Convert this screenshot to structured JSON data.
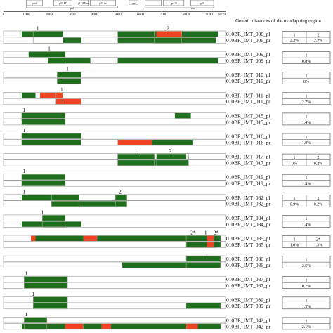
{
  "genome_map": {
    "labels": {
      "prot": "prot",
      "pol": "pol",
      "rt": "p51 RT",
      "rnase": "p15 RNase",
      "int": "p31 int",
      "vpr": "vpr",
      "env": "env",
      "gp120": "gp120",
      "gp41": "gp41"
    },
    "axis": {
      "min": 0,
      "max": 9719,
      "ticks": [
        0,
        1000,
        2000,
        3000,
        4000,
        5000,
        6000,
        7000,
        8000,
        9000,
        9719
      ]
    }
  },
  "header": {
    "title": "Genetic distances  of  the overlapping region"
  },
  "colors": {
    "green": "#1e6e1e",
    "red": "#ee4422",
    "track": "#ffffff",
    "border": "#888888"
  },
  "pairs": [
    {
      "markers": [
        {
          "label": "1",
          "pos": 1500
        },
        {
          "label": "2",
          "pos": 7200
        }
      ],
      "overlaps": [
        [
          1300,
          2600
        ],
        [
          6600,
          7800
        ]
      ],
      "pl": {
        "name": "010BR_IMT_006_pl",
        "segments": [
          [
            800,
            2600,
            "g"
          ],
          [
            5000,
            6700,
            "g"
          ],
          [
            6700,
            7800,
            "r"
          ],
          [
            7800,
            9400,
            "g"
          ]
        ]
      },
      "pr": {
        "name": "010BR_IMT_006_pr",
        "segments": [
          [
            2600,
            3400,
            "g"
          ],
          [
            5000,
            9300,
            "g"
          ]
        ]
      },
      "distances": [
        {
          "id": "1",
          "value": "2.2%"
        },
        {
          "id": "2",
          "value": "2.3%"
        }
      ]
    },
    {
      "markers": [
        {
          "label": "1",
          "pos": 2000
        }
      ],
      "overlaps": [
        [
          1950,
          2700
        ]
      ],
      "pl": {
        "name": "010BR_IMT_009_pl",
        "segments": [
          [
            1100,
            2700,
            "g"
          ]
        ]
      },
      "pr": {
        "name": "010BR_IMT_009_pr",
        "segments": [
          [
            1950,
            3800,
            "g"
          ],
          [
            5000,
            9400,
            "g"
          ]
        ]
      },
      "distances": [
        {
          "id": "1",
          "value": "0.8%"
        }
      ]
    },
    {
      "markers": [
        {
          "label": "1",
          "pos": 2800
        }
      ],
      "overlaps": [
        [
          2350,
          3400
        ]
      ],
      "pl": {
        "name": "010BR_IMT_010_pl",
        "segments": [
          [
            2350,
            3400,
            "g"
          ]
        ]
      },
      "pr": {
        "name": "010BR_IMT_010_pr",
        "segments": [
          [
            2350,
            3400,
            "g"
          ]
        ]
      },
      "distances": [
        {
          "id": "1",
          "value": "0%"
        }
      ]
    },
    {
      "markers": [
        {
          "label": "1",
          "pos": 2550
        }
      ],
      "overlaps": [
        [
          2300,
          2600
        ]
      ],
      "pl": {
        "name": "010BR_IMT_011_pl",
        "segments": [
          [
            800,
            1400,
            "g"
          ],
          [
            1600,
            2600,
            "r"
          ]
        ]
      },
      "pr": {
        "name": "010BR_IMT_011_pr",
        "segments": [
          [
            2300,
            3400,
            "r"
          ]
        ]
      },
      "distances": [
        {
          "id": "1",
          "value": "2.7%"
        }
      ]
    },
    {
      "markers": [
        {
          "label": "1",
          "pos": 900
        }
      ],
      "overlaps": [
        [
          800,
          2700
        ]
      ],
      "pl": {
        "name": "010BR_IMT_015_pl",
        "segments": [
          [
            800,
            2700,
            "g"
          ],
          [
            7500,
            8200,
            "g"
          ]
        ]
      },
      "pr": {
        "name": "010BR_IMT_015_pr",
        "segments": [
          [
            800,
            2700,
            "g"
          ]
        ]
      },
      "distances": [
        {
          "id": "1",
          "value": "1.4%"
        }
      ]
    },
    {
      "markers": [
        {
          "label": "1",
          "pos": 900
        }
      ],
      "overlaps": [
        [
          800,
          3400
        ]
      ],
      "pl": {
        "name": "010BR_IMT_016_pl",
        "segments": [
          [
            800,
            3400,
            "g"
          ]
        ]
      },
      "pr": {
        "name": "010BR_IMT_016_pr",
        "segments": [
          [
            800,
            3400,
            "g"
          ],
          [
            5000,
            6500,
            "r"
          ],
          [
            6500,
            8300,
            "g"
          ]
        ]
      },
      "distances": [
        {
          "id": "1",
          "value": "1.0%"
        }
      ]
    },
    {
      "markers": [
        {
          "label": "1",
          "pos": 5800
        },
        {
          "label": "2",
          "pos": 7300
        }
      ],
      "overlaps": [
        [
          5000,
          6600
        ],
        [
          6700,
          8100
        ]
      ],
      "pl": {
        "name": "010BR_IMT_017_pl",
        "segments": [
          [
            5000,
            6600,
            "g"
          ],
          [
            6700,
            8000,
            "g"
          ]
        ]
      },
      "pr": {
        "name": "010BR_IMT_017_pr",
        "segments": [
          [
            5000,
            6700,
            "g"
          ],
          [
            6700,
            8100,
            "g"
          ]
        ]
      },
      "distances": [
        {
          "id": "1",
          "value": "0%"
        },
        {
          "id": "2",
          "value": "0.2%"
        }
      ]
    },
    {
      "markers": [
        {
          "label": "1",
          "pos": 900
        }
      ],
      "overlaps": [
        [
          800,
          2700
        ]
      ],
      "pl": {
        "name": "010BR_IMT_019_pl",
        "segments": [
          [
            800,
            2700,
            "g"
          ]
        ]
      },
      "pr": {
        "name": "010BR_IMT_019_pr",
        "segments": [
          [
            800,
            2700,
            "g"
          ]
        ]
      },
      "distances": [
        {
          "id": "1",
          "value": "1.4%"
        }
      ]
    },
    {
      "markers": [
        {
          "label": "1",
          "pos": 900
        },
        {
          "label": "2",
          "pos": 5100
        }
      ],
      "overlaps": [
        [
          2100,
          3300
        ],
        [
          4900,
          5400
        ]
      ],
      "pl": {
        "name": "010BR_IMT_032_pl",
        "segments": [
          [
            800,
            3300,
            "g"
          ],
          [
            4900,
            5400,
            "g"
          ]
        ]
      },
      "pr": {
        "name": "010BR_IMT_032_pr",
        "segments": [
          [
            2100,
            5400,
            "g"
          ]
        ]
      },
      "distances": [
        {
          "id": "1",
          "value": "0.9%"
        },
        {
          "id": "2",
          "value": "0.2%"
        }
      ]
    },
    {
      "markers": [
        {
          "label": "1",
          "pos": 1700
        }
      ],
      "overlaps": [
        [
          1700,
          2700
        ]
      ],
      "pl": {
        "name": "010BR_IMT_034_pl",
        "segments": [
          [
            1700,
            2700,
            "g"
          ]
        ]
      },
      "pr": {
        "name": "010BR_IMT_034_pr",
        "segments": [
          [
            800,
            3400,
            "g"
          ]
        ]
      },
      "distances": [
        {
          "id": "1",
          "value": "1.4%"
        }
      ]
    },
    {
      "markers": [
        {
          "label": "2*",
          "pos": 8300
        },
        {
          "label": "1",
          "pos": 8850
        },
        {
          "label": "2*",
          "pos": 9300
        }
      ],
      "overlaps": [
        [
          8000,
          9300
        ]
      ],
      "pl": {
        "name": "010BR_IMT_035_pl",
        "segments": [
          [
            1200,
            1400,
            "r"
          ],
          [
            1400,
            3500,
            "g"
          ],
          [
            3500,
            4100,
            "r"
          ],
          [
            4100,
            9200,
            "g"
          ],
          [
            8900,
            9200,
            "r"
          ],
          [
            9200,
            9500,
            "g"
          ]
        ]
      },
      "pr": {
        "name": "010BR_IMT_035_pr",
        "segments": [
          [
            8000,
            8900,
            "g"
          ],
          [
            8900,
            9200,
            "r"
          ],
          [
            9200,
            9500,
            "g"
          ]
        ]
      },
      "distances": [
        {
          "id": "1",
          "value": "1.0%"
        },
        {
          "id": "2*",
          "value": "1.3%"
        }
      ]
    },
    {
      "markers": [
        {
          "label": "1",
          "pos": 8900
        }
      ],
      "overlaps": [
        [
          8000,
          9500
        ]
      ],
      "pl": {
        "name": "010BR_IMT_036_pl",
        "segments": [
          [
            8000,
            9500,
            "g"
          ]
        ]
      },
      "pr": {
        "name": "010BR_IMT_036_pr",
        "segments": [
          [
            5200,
            9500,
            "g"
          ]
        ]
      },
      "distances": [
        {
          "id": "1",
          "value": "2.5%"
        }
      ]
    },
    {
      "markers": [
        {
          "label": "1",
          "pos": 1000
        }
      ],
      "overlaps": [
        [
          900,
          2800
        ]
      ],
      "pl": {
        "name": "010BR_IMT_037_pl",
        "segments": [
          [
            900,
            2800,
            "g"
          ]
        ]
      },
      "pr": {
        "name": "010BR_IMT_037_pr",
        "segments": [
          [
            900,
            2800,
            "g"
          ]
        ]
      },
      "distances": [
        {
          "id": "1",
          "value": "0.7%"
        }
      ]
    },
    {
      "markers": [
        {
          "label": "1",
          "pos": 1300
        }
      ],
      "overlaps": [
        [
          1300,
          2800
        ]
      ],
      "pl": {
        "name": "010BR_IMT_039_pl",
        "segments": [
          [
            1300,
            2800,
            "g"
          ]
        ]
      },
      "pr": {
        "name": "010BR_IMT_039_pr",
        "segments": [
          [
            1300,
            2800,
            "g"
          ],
          [
            8000,
            9500,
            "g"
          ]
        ]
      },
      "distances": [
        {
          "id": "1",
          "value": "1.3%"
        }
      ]
    },
    {
      "markers": [
        {
          "label": "1",
          "pos": 1000
        }
      ],
      "overlaps": [
        [
          900,
          1900
        ]
      ],
      "pl": {
        "name": "010BR_IMT_042_pl",
        "segments": [
          [
            900,
            1900,
            "g"
          ]
        ]
      },
      "pr": {
        "name": "010BR_IMT_042_pr",
        "segments": [
          [
            800,
            1900,
            "g"
          ],
          [
            1900,
            2700,
            "g"
          ],
          [
            2700,
            3500,
            "r"
          ],
          [
            3500,
            4300,
            "g"
          ],
          [
            4300,
            4700,
            "r"
          ],
          [
            4700,
            8000,
            "g"
          ],
          [
            8000,
            8500,
            "r"
          ],
          [
            8500,
            9500,
            "g"
          ]
        ]
      },
      "distances": [
        {
          "id": "1",
          "value": "2.1%"
        }
      ]
    }
  ]
}
